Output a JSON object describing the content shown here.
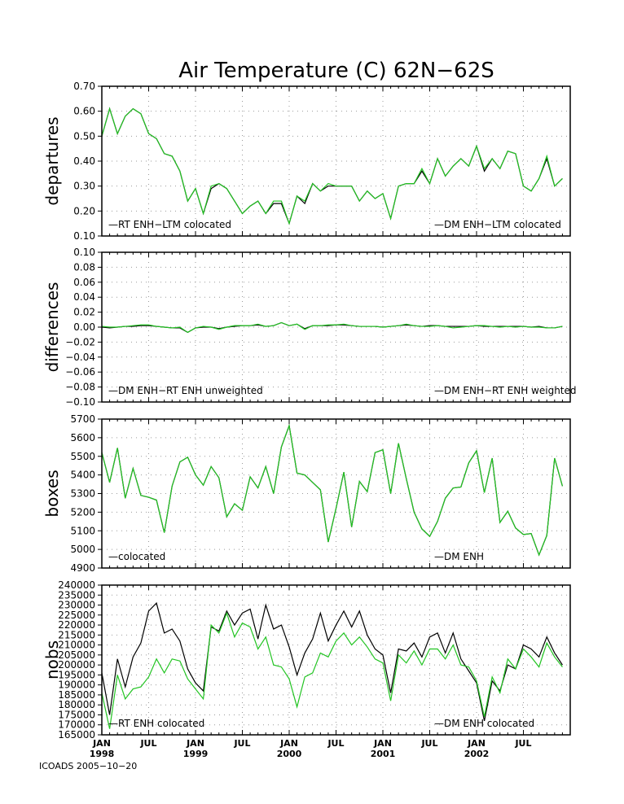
{
  "title": "Air Temperature (C) 62N−62S",
  "footer": "ICOADS 2005−10−20",
  "colors": {
    "black_series": "#000000",
    "green_series": "#22c422",
    "grid": "#9a9a9a"
  },
  "x_axis": {
    "n_months": 60,
    "ticks": [
      {
        "month": 0,
        "label": "JAN",
        "year": "1998"
      },
      {
        "month": 6,
        "label": "JUL",
        "year": ""
      },
      {
        "month": 12,
        "label": "JAN",
        "year": "1999"
      },
      {
        "month": 18,
        "label": "JUL",
        "year": ""
      },
      {
        "month": 24,
        "label": "JAN",
        "year": "2000"
      },
      {
        "month": 30,
        "label": "JUL",
        "year": ""
      },
      {
        "month": 36,
        "label": "JAN",
        "year": "2001"
      },
      {
        "month": 42,
        "label": "JUL",
        "year": ""
      },
      {
        "month": 48,
        "label": "JAN",
        "year": "2002"
      },
      {
        "month": 54,
        "label": "JUL",
        "year": ""
      }
    ]
  },
  "chart_data": [
    {
      "type": "line",
      "ylabel": "departures",
      "ylim": [
        0.1,
        0.7
      ],
      "yticks": [
        "0.10",
        "0.20",
        "0.30",
        "0.40",
        "0.50",
        "0.60",
        "0.70"
      ],
      "legend": [
        "—RT ENH−LTM colocated",
        "—DM ENH−LTM colocated"
      ],
      "series": [
        {
          "name": "RT ENH−LTM colocated",
          "color": "black",
          "values": [
            0.5,
            0.61,
            0.51,
            0.58,
            0.61,
            0.59,
            0.51,
            0.49,
            0.43,
            0.42,
            0.36,
            0.24,
            0.29,
            0.19,
            0.29,
            0.31,
            0.29,
            0.24,
            0.19,
            0.22,
            0.24,
            0.19,
            0.23,
            0.23,
            0.15,
            0.26,
            0.23,
            0.31,
            0.28,
            0.3,
            0.3,
            0.3,
            0.3,
            0.24,
            0.28,
            0.25,
            0.27,
            0.17,
            0.3,
            0.31,
            0.31,
            0.36,
            0.31,
            0.41,
            0.34,
            0.38,
            0.41,
            0.38,
            0.46,
            0.36,
            0.41,
            0.37,
            0.44,
            0.43,
            0.3,
            0.28,
            0.33,
            0.41,
            0.3,
            0.33
          ]
        },
        {
          "name": "DM ENH−LTM colocated",
          "color": "green",
          "values": [
            0.5,
            0.61,
            0.51,
            0.58,
            0.61,
            0.59,
            0.51,
            0.49,
            0.43,
            0.42,
            0.36,
            0.24,
            0.29,
            0.19,
            0.3,
            0.31,
            0.29,
            0.24,
            0.19,
            0.22,
            0.24,
            0.19,
            0.24,
            0.24,
            0.15,
            0.26,
            0.24,
            0.31,
            0.28,
            0.31,
            0.3,
            0.3,
            0.3,
            0.24,
            0.28,
            0.25,
            0.27,
            0.17,
            0.3,
            0.31,
            0.31,
            0.37,
            0.31,
            0.41,
            0.34,
            0.38,
            0.41,
            0.38,
            0.46,
            0.37,
            0.41,
            0.37,
            0.44,
            0.43,
            0.3,
            0.28,
            0.33,
            0.42,
            0.3,
            0.33
          ]
        }
      ]
    },
    {
      "type": "line",
      "ylabel": "differences",
      "ylim": [
        -0.1,
        0.1
      ],
      "yticks": [
        "−0.10",
        "−0.08",
        "−0.06",
        "−0.04",
        "−0.02",
        "0.00",
        "0.02",
        "0.04",
        "0.06",
        "0.08",
        "0.10"
      ],
      "legend": [
        "—DM ENH−RT ENH unweighted",
        "—DM ENH−RT ENH weighted"
      ],
      "series": [
        {
          "name": "DM ENH−RT ENH unweighted",
          "color": "black",
          "values": [
            0.0,
            -0.001,
            0.0,
            0.001,
            0.001,
            0.002,
            0.002,
            0.001,
            0.0,
            -0.001,
            -0.001,
            -0.007,
            -0.001,
            0.0,
            0.0,
            -0.002,
            0.0,
            0.001,
            0.002,
            0.002,
            0.003,
            0.001,
            0.002,
            0.006,
            0.002,
            0.004,
            -0.002,
            0.002,
            0.002,
            0.002,
            0.003,
            0.003,
            0.002,
            0.001,
            0.001,
            0.001,
            0.0,
            0.001,
            0.002,
            0.003,
            0.002,
            0.001,
            0.002,
            0.002,
            0.001,
            0.001,
            0.001,
            0.001,
            0.002,
            0.001,
            0.001,
            0.001,
            0.001,
            0.001,
            0.001,
            0.0,
            0.001,
            -0.001,
            -0.001,
            0.001
          ]
        },
        {
          "name": "DM ENH−RT ENH weighted",
          "color": "green",
          "values": [
            0.001,
            0.0,
            0.0,
            0.001,
            0.002,
            0.003,
            0.003,
            0.001,
            0.0,
            -0.001,
            0.0,
            -0.007,
            -0.001,
            0.001,
            0.0,
            -0.003,
            0.0,
            0.002,
            0.002,
            0.002,
            0.004,
            0.001,
            0.002,
            0.006,
            0.002,
            0.004,
            -0.003,
            0.002,
            0.002,
            0.003,
            0.003,
            0.004,
            0.002,
            0.001,
            0.001,
            0.001,
            0.0,
            0.001,
            0.002,
            0.004,
            0.002,
            0.001,
            0.001,
            0.002,
            0.001,
            -0.001,
            0.0,
            0.001,
            0.002,
            0.002,
            0.001,
            0.0,
            0.001,
            0.0,
            0.001,
            0.0,
            0.0,
            -0.001,
            -0.001,
            0.001
          ]
        }
      ]
    },
    {
      "type": "line",
      "ylabel": "boxes",
      "ylim": [
        4900,
        5700
      ],
      "yticks": [
        "4900",
        "5000",
        "5100",
        "5200",
        "5300",
        "5400",
        "5500",
        "5600",
        "5700"
      ],
      "legend": [
        "—colocated",
        "—DM ENH"
      ],
      "series": [
        {
          "name": "colocated",
          "color": "black",
          "values": [
            5520,
            5360,
            5545,
            5275,
            5435,
            5290,
            5280,
            5265,
            5090,
            5340,
            5470,
            5495,
            5400,
            5345,
            5445,
            5385,
            5175,
            5245,
            5210,
            5390,
            5330,
            5445,
            5300,
            5550,
            5665,
            5410,
            5400,
            5360,
            5320,
            5040,
            5220,
            5415,
            5120,
            5365,
            5310,
            5520,
            5535,
            5300,
            5570,
            5380,
            5200,
            5110,
            5070,
            5150,
            5275,
            5330,
            5335,
            5465,
            5530,
            5305,
            5490,
            5145,
            5205,
            5115,
            5080,
            5085,
            4970,
            5075,
            5490,
            5340
          ]
        },
        {
          "name": "DM ENH",
          "color": "green",
          "values": [
            5520,
            5360,
            5545,
            5275,
            5435,
            5290,
            5280,
            5265,
            5090,
            5340,
            5470,
            5495,
            5400,
            5345,
            5445,
            5385,
            5175,
            5245,
            5210,
            5390,
            5330,
            5445,
            5300,
            5550,
            5665,
            5410,
            5400,
            5360,
            5320,
            5040,
            5220,
            5415,
            5120,
            5365,
            5310,
            5520,
            5535,
            5300,
            5570,
            5380,
            5200,
            5110,
            5070,
            5150,
            5275,
            5330,
            5335,
            5465,
            5530,
            5305,
            5490,
            5145,
            5205,
            5115,
            5080,
            5085,
            4970,
            5075,
            5490,
            5340
          ]
        }
      ]
    },
    {
      "type": "line",
      "ylabel": "nobs",
      "ylim": [
        165000,
        240000
      ],
      "yticks": [
        "165000",
        "170000",
        "175000",
        "180000",
        "185000",
        "190000",
        "195000",
        "200000",
        "205000",
        "210000",
        "215000",
        "220000",
        "225000",
        "230000",
        "235000",
        "240000"
      ],
      "legend": [
        "—RT ENH colocated",
        "—DM ENH colocated"
      ],
      "series": [
        {
          "name": "RT ENH colocated",
          "color": "black",
          "values": [
            196000,
            175000,
            203000,
            189000,
            204000,
            211000,
            227000,
            231000,
            216000,
            218000,
            212000,
            198000,
            191000,
            187000,
            219000,
            217000,
            227000,
            220000,
            226000,
            228000,
            213000,
            230000,
            218000,
            220000,
            209000,
            195000,
            206000,
            213000,
            226000,
            212000,
            220000,
            227000,
            219000,
            227000,
            215000,
            208000,
            205000,
            186000,
            208000,
            207000,
            211000,
            204000,
            214000,
            216000,
            206000,
            216000,
            203000,
            197000,
            191000,
            172000,
            192000,
            187000,
            200000,
            198000,
            210000,
            208000,
            204000,
            214000,
            206000,
            200000
          ]
        },
        {
          "name": "DM ENH colocated",
          "color": "green",
          "values": [
            186000,
            168000,
            195000,
            183000,
            188000,
            189000,
            194000,
            203000,
            196000,
            203000,
            202000,
            193000,
            188000,
            183000,
            220000,
            216000,
            226000,
            214000,
            221000,
            219000,
            208000,
            214000,
            200000,
            199000,
            193000,
            179000,
            194000,
            196000,
            206000,
            204000,
            212000,
            216000,
            210000,
            214000,
            209000,
            203000,
            201000,
            182000,
            205000,
            201000,
            207000,
            200000,
            208000,
            208000,
            203000,
            210000,
            200000,
            199000,
            192000,
            174000,
            194000,
            186000,
            203000,
            198000,
            208000,
            204000,
            199000,
            211000,
            204000,
            199000
          ]
        }
      ]
    }
  ]
}
